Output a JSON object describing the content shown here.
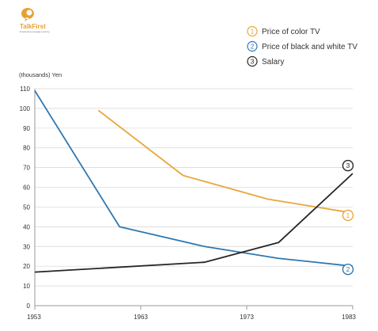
{
  "logo": {
    "name": "TalkFirst",
    "tagline": "Empowering Language Learning"
  },
  "chart_data": {
    "type": "line",
    "ylabel": "(thousands) Yen",
    "x_ticks": [
      "1953",
      "1963",
      "1973",
      "1983"
    ],
    "xlim": [
      1953,
      1983
    ],
    "ylim": [
      0,
      110
    ],
    "y_ticks": [
      "0",
      "10",
      "20",
      "30",
      "40",
      "50",
      "60",
      "70",
      "80",
      "90",
      "100",
      "110"
    ],
    "grid": "horizontal",
    "legend_position": "top-right",
    "series": [
      {
        "name": "Price of color TV",
        "marker": "1",
        "color": "#e8a73a",
        "points": [
          [
            1959,
            99
          ],
          [
            1967,
            66
          ],
          [
            1975,
            54
          ],
          [
            1983,
            47
          ]
        ]
      },
      {
        "name": "Price of black and white TV",
        "marker": "2",
        "color": "#2f78b0",
        "points": [
          [
            1953,
            109
          ],
          [
            1961,
            40
          ],
          [
            1969,
            30
          ],
          [
            1976,
            24
          ],
          [
            1983,
            20
          ]
        ]
      },
      {
        "name": "Salary",
        "marker": "3",
        "color": "#262626",
        "points": [
          [
            1953,
            17
          ],
          [
            1969,
            22
          ],
          [
            1976,
            32
          ],
          [
            1983,
            67
          ]
        ]
      }
    ]
  }
}
